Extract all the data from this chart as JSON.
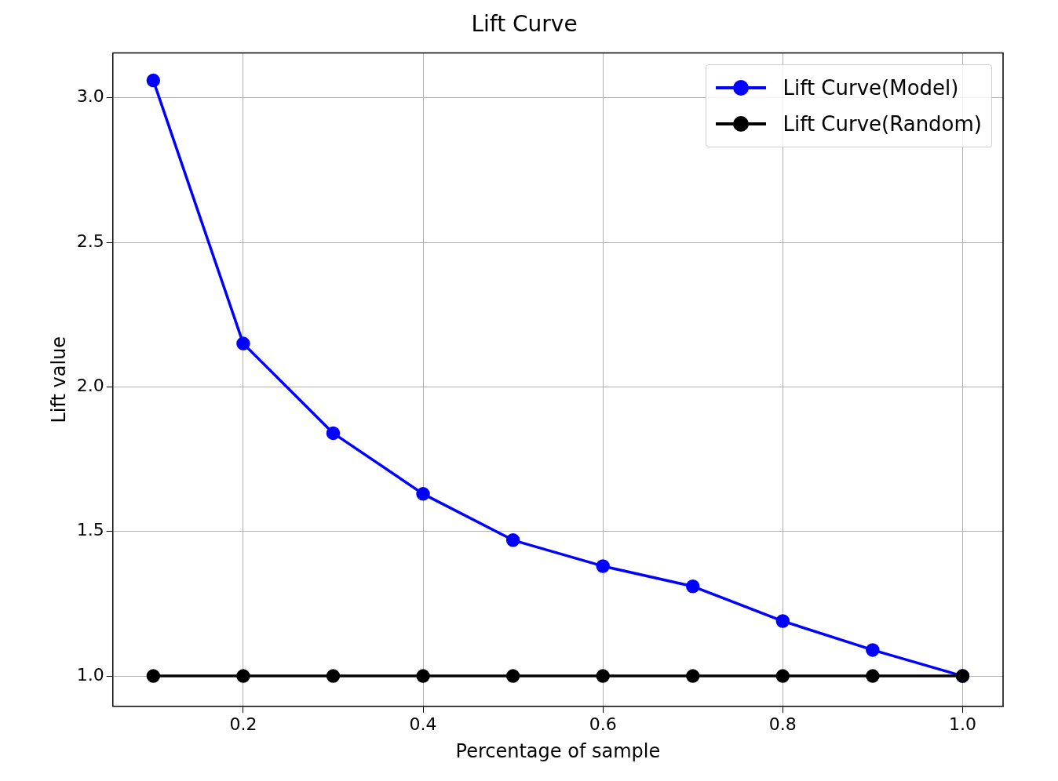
{
  "chart_data": {
    "type": "line",
    "title": "Lift Curve",
    "xlabel": "Percentage of sample",
    "ylabel": "Lift value",
    "x": [
      0.1,
      0.2,
      0.3,
      0.4,
      0.5,
      0.6,
      0.7,
      0.8,
      0.9,
      1.0
    ],
    "series": [
      {
        "name": "Lift Curve(Model)",
        "color": "#0000ff",
        "values": [
          3.06,
          2.15,
          1.84,
          1.63,
          1.47,
          1.38,
          1.31,
          1.19,
          1.09,
          1.0
        ]
      },
      {
        "name": "Lift Curve(Random)",
        "color": "#000000",
        "values": [
          1,
          1,
          1,
          1,
          1,
          1,
          1,
          1,
          1,
          1
        ]
      }
    ],
    "xlim": [
      0.055,
      1.045
    ],
    "xticks": [
      0.2,
      0.4,
      0.6,
      0.8,
      {
        "value": 1,
        "label": "1.0"
      }
    ],
    "ylim": [
      0.895,
      3.155
    ],
    "yticks": [
      {
        "value": 1,
        "label": "1.0"
      },
      1.5,
      {
        "value": 2,
        "label": "2.0"
      },
      2.5,
      {
        "value": 3,
        "label": "3.0"
      }
    ],
    "grid": true,
    "legend": "top right",
    "marker": "circle",
    "line_style": "solid"
  }
}
